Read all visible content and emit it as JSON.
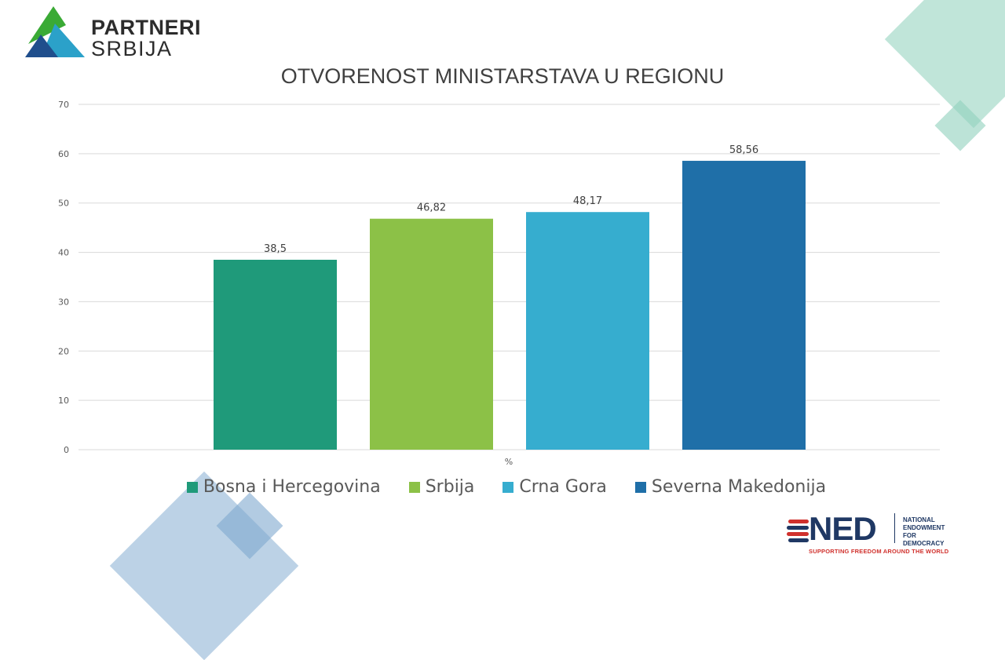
{
  "logo": {
    "line1": "PARTNERI",
    "line2": "SRBIJA"
  },
  "colors": {
    "bosna": "#1f9a7a",
    "srbija": "#8cc147",
    "crna_gora": "#36adcf",
    "makedonija": "#1f6fa8",
    "grid": "#d9d9d9",
    "deco_teal": "#b9e2d5",
    "deco_blue": "#b5cde3"
  },
  "chart_data": {
    "type": "bar",
    "title": "OTVORENOST MINISTARSTAVA U REGIONU",
    "xlabel": "%",
    "ylabel": "",
    "ylim": [
      0,
      70
    ],
    "yticks": [
      0,
      10,
      20,
      30,
      40,
      50,
      60,
      70
    ],
    "grid": true,
    "legend_position": "bottom",
    "series": [
      {
        "name": "Bosna i Hercegovina",
        "value": 38.5,
        "label": "38,5",
        "color": "#1f9a7a"
      },
      {
        "name": "Srbija",
        "value": 46.82,
        "label": "46,82",
        "color": "#8cc147"
      },
      {
        "name": "Crna Gora",
        "value": 48.17,
        "label": "48,17",
        "color": "#36adcf"
      },
      {
        "name": "Severna Makedonija",
        "value": 58.56,
        "label": "58,56",
        "color": "#1f6fa8"
      }
    ]
  },
  "footer": {
    "ned_acronym": "NED",
    "ned_fullname": [
      "NATIONAL",
      "ENDOWMENT",
      "FOR",
      "DEMOCRACY"
    ],
    "ned_tagline": "SUPPORTING FREEDOM AROUND THE WORLD"
  }
}
